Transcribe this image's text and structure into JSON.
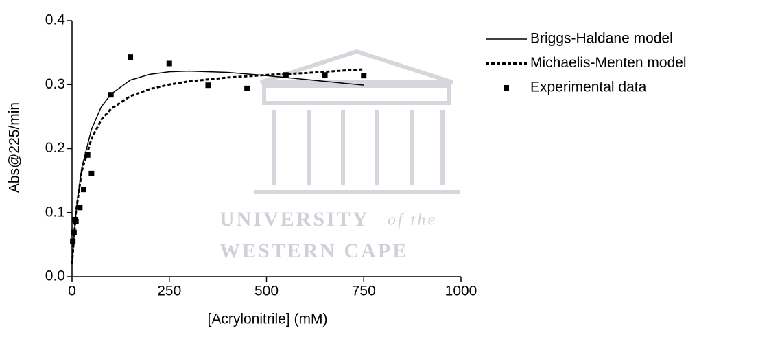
{
  "chart_data": {
    "type": "line",
    "xlabel": "[Acrylonitrile] (mM)",
    "ylabel": "Abs@225/min",
    "xlim": [
      0,
      1000
    ],
    "xticks": [
      0,
      250,
      500,
      750,
      1000
    ],
    "ylim": [
      0,
      0.4
    ],
    "yticks": [
      {
        "value": 0,
        "label": "0.0"
      },
      0.1,
      0.2,
      0.3,
      0.4
    ],
    "grid": false,
    "legend": "right",
    "watermark": [
      "UNIVERSITY",
      "of the",
      "WESTERN CAPE"
    ],
    "series": [
      {
        "name": "Briggs-Haldane model",
        "color": "#000000",
        "style": "solid",
        "x": [
          0,
          10,
          25,
          50,
          75,
          100,
          150,
          200,
          250,
          300,
          400,
          500,
          600,
          750
        ],
        "values": [
          0.02,
          0.1,
          0.17,
          0.23,
          0.265,
          0.285,
          0.307,
          0.316,
          0.32,
          0.321,
          0.319,
          0.314,
          0.308,
          0.299
        ]
      },
      {
        "name": "Michaelis-Menten model",
        "color": "#000000",
        "style": "dashed",
        "x": [
          0,
          10,
          25,
          50,
          75,
          100,
          150,
          200,
          250,
          300,
          400,
          500,
          600,
          750
        ],
        "values": [
          0.02,
          0.1,
          0.165,
          0.215,
          0.245,
          0.262,
          0.282,
          0.293,
          0.3,
          0.305,
          0.311,
          0.315,
          0.318,
          0.324
        ]
      },
      {
        "name": "Experimental data",
        "color": "#000000",
        "style": "markers",
        "x": [
          2,
          5,
          7,
          10,
          20,
          30,
          40,
          50,
          100,
          150,
          250,
          350,
          450,
          550,
          650,
          750
        ],
        "values": [
          0.055,
          0.069,
          0.089,
          0.086,
          0.108,
          0.136,
          0.19,
          0.161,
          0.284,
          0.343,
          0.333,
          0.299,
          0.294,
          0.315,
          0.315,
          0.314
        ]
      }
    ]
  }
}
